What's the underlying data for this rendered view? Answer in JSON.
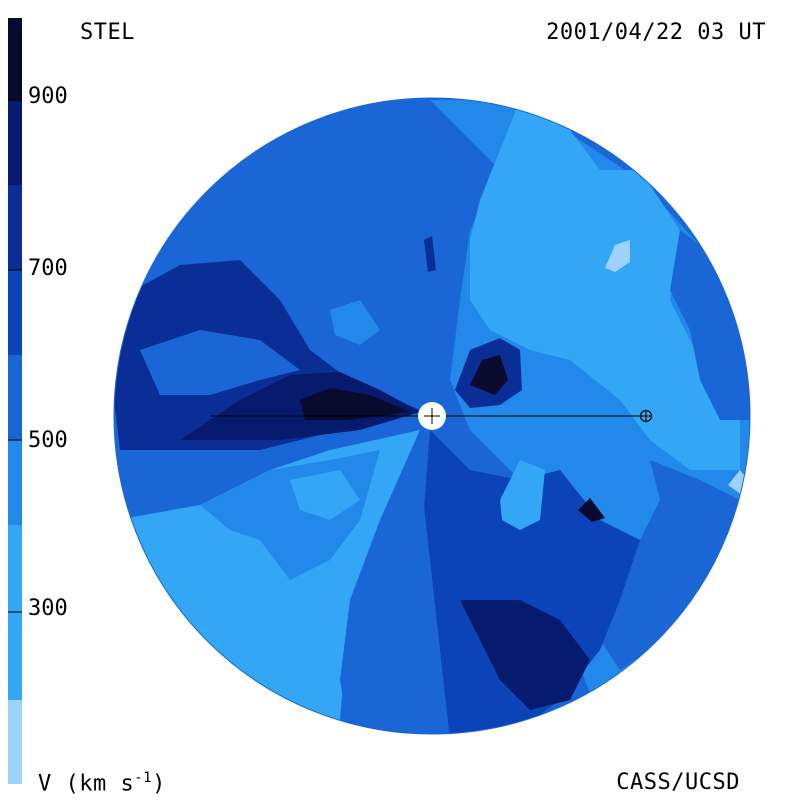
{
  "header": {
    "site": "STEL",
    "timestamp": "2001/04/22 03 UT"
  },
  "footer": {
    "quantity_label": "V (km s",
    "quantity_superscript": "-1",
    "quantity_close": ")",
    "credit": "CASS/UCSD"
  },
  "colorbar": {
    "tick_labels": [
      "900",
      "700",
      "500",
      "300"
    ],
    "colors": [
      "#0a0a2e",
      "#061a6e",
      "#0a2d96",
      "#0b44b8",
      "#1a66d6",
      "#2289ea",
      "#33a6f5",
      "#9fd2fb"
    ]
  },
  "map": {
    "palette": {
      "lightest": "#9fd2fb",
      "light": "#33a6f5",
      "mid_light": "#2289ea",
      "mid": "#1a66d6",
      "mid_dark": "#0b44b8",
      "dark": "#0a2d96",
      "darker": "#061a6e",
      "darkest": "#0a0a2e"
    }
  }
}
